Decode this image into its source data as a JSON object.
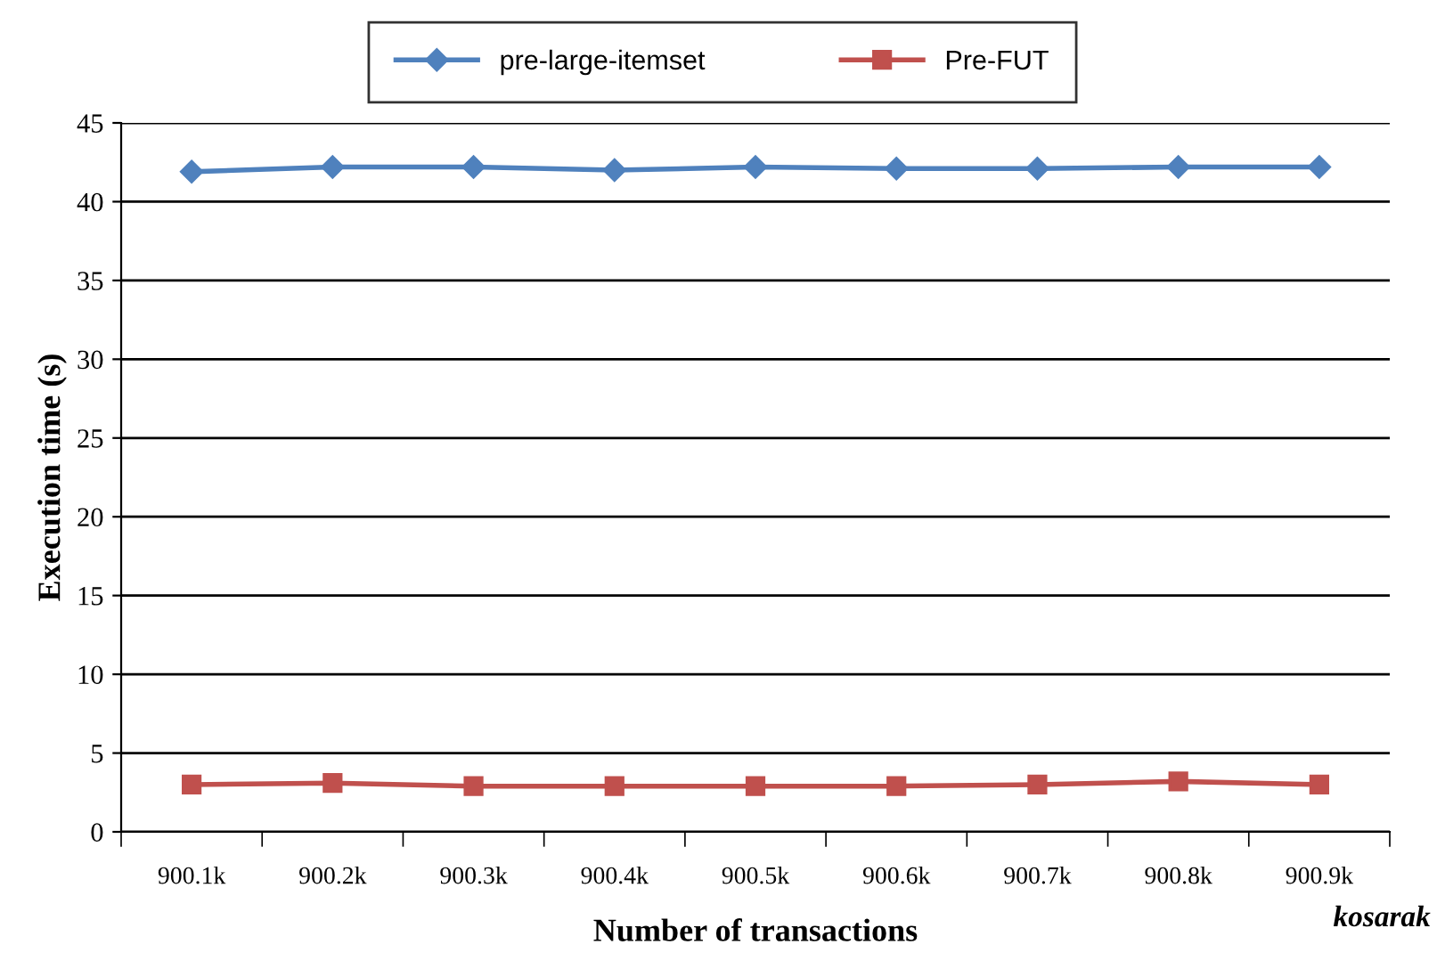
{
  "chart_data": {
    "type": "line",
    "categories": [
      "900.1k",
      "900.2k",
      "900.3k",
      "900.4k",
      "900.5k",
      "900.6k",
      "900.7k",
      "900.8k",
      "900.9k"
    ],
    "series": [
      {
        "name": "pre-large-itemset",
        "color": "#4f81bd",
        "marker": "diamond",
        "values": [
          41.9,
          42.2,
          42.2,
          42.0,
          42.2,
          42.1,
          42.1,
          42.2,
          42.2
        ]
      },
      {
        "name": "Pre-FUT",
        "color": "#c0504d",
        "marker": "square",
        "values": [
          3.0,
          3.1,
          2.9,
          2.9,
          2.9,
          2.9,
          3.0,
          3.2,
          3.0
        ]
      }
    ],
    "xlabel": "Number of transactions",
    "ylabel": "Execution time (s)",
    "ylim": [
      0,
      45
    ],
    "yticks": [
      0,
      5,
      10,
      15,
      20,
      25,
      30,
      35,
      40,
      45
    ],
    "grid": "y",
    "legend": "top",
    "line_style": "solid",
    "annotations": [
      "kosarak"
    ]
  }
}
